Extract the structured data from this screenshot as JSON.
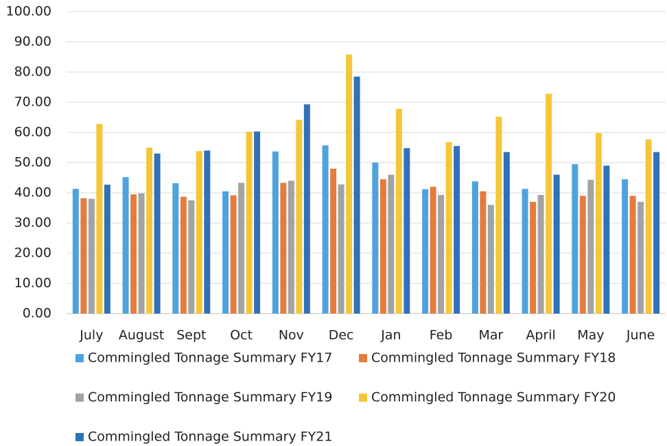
{
  "chart_data": {
    "type": "bar",
    "categories": [
      "July",
      "August",
      "Sept",
      "Oct",
      "Nov",
      "Dec",
      "Jan",
      "Feb",
      "Mar",
      "April",
      "May",
      "June"
    ],
    "series": [
      {
        "name": "Commingled Tonnage Summary FY17",
        "color": "#4ea3de",
        "values": [
          41.3,
          45.2,
          43.2,
          40.5,
          53.7,
          55.7,
          50.0,
          41.2,
          43.8,
          41.3,
          49.5,
          44.5
        ]
      },
      {
        "name": "Commingled Tonnage Summary FY18",
        "color": "#e67c3c",
        "values": [
          38.2,
          39.5,
          38.7,
          39.2,
          43.3,
          48.0,
          44.5,
          42.0,
          40.5,
          37.0,
          39.0,
          39.0
        ]
      },
      {
        "name": "Commingled Tonnage Summary FY19",
        "color": "#a3a3a3",
        "values": [
          38.0,
          39.8,
          37.5,
          43.3,
          44.0,
          42.8,
          46.0,
          39.3,
          36.0,
          39.3,
          44.3,
          37.0
        ]
      },
      {
        "name": "Commingled Tonnage Summary FY20",
        "color": "#f5c638",
        "values": [
          62.8,
          55.0,
          53.8,
          60.2,
          64.2,
          85.8,
          67.8,
          56.8,
          65.2,
          72.8,
          59.8,
          57.7
        ]
      },
      {
        "name": "Commingled Tonnage Summary FY21",
        "color": "#2f72b8",
        "values": [
          42.7,
          53.0,
          54.0,
          60.3,
          69.3,
          78.5,
          54.8,
          55.5,
          53.5,
          46.0,
          49.0,
          53.5
        ]
      }
    ],
    "ylim": [
      0,
      100
    ],
    "yticks": [
      {
        "value": 0,
        "label": "0.00"
      },
      {
        "value": 10,
        "label": "10.00"
      },
      {
        "value": 20,
        "label": "20.00"
      },
      {
        "value": 30,
        "label": "30.00"
      },
      {
        "value": 40,
        "label": "40.00"
      },
      {
        "value": 50,
        "label": "50.00"
      },
      {
        "value": 60,
        "label": "60.00"
      },
      {
        "value": 70,
        "label": "70.00"
      },
      {
        "value": 80,
        "label": "80.00"
      },
      {
        "value": 90,
        "label": "90.00"
      },
      {
        "value": 100,
        "label": "100.00"
      }
    ],
    "grid": true,
    "legend": "bottom"
  }
}
